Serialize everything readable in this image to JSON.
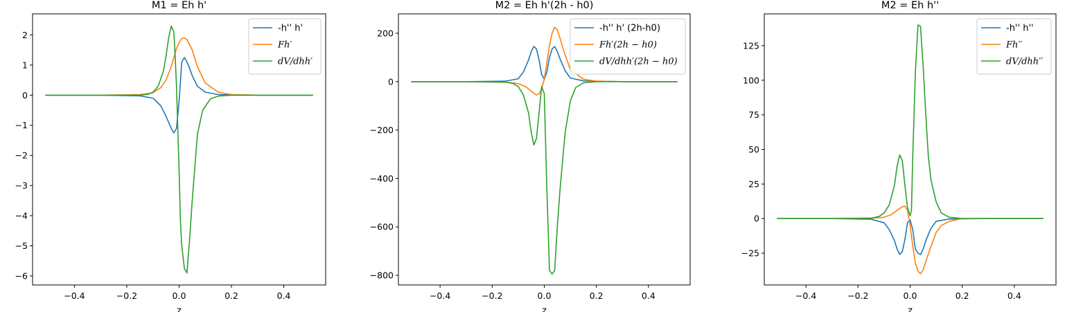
{
  "colors": {
    "c0": "#1f77b4",
    "c1": "#ff7f0e",
    "c2": "#2ca02c"
  },
  "chart_data": [
    {
      "type": "line",
      "title": "M1 = Eh h'",
      "xlabel": "z",
      "ylabel": "",
      "xlim": [
        -0.56,
        0.56
      ],
      "ylim": [
        -6.3,
        2.7
      ],
      "xticks": [
        -0.4,
        -0.2,
        0.0,
        0.2,
        0.4
      ],
      "xtick_labels": [
        "−0.4",
        "−0.2",
        "0.0",
        "0.2",
        "0.4"
      ],
      "yticks": [
        -6,
        -5,
        -4,
        -3,
        -2,
        -1,
        0,
        1,
        2
      ],
      "ytick_labels": [
        "−6",
        "−5",
        "−4",
        "−3",
        "−2",
        "−1",
        "0",
        "1",
        "2"
      ],
      "legend_position": "upper-right",
      "series": [
        {
          "name": "-h'' h'",
          "math": false,
          "color": "#1f77b4",
          "x": [
            -0.51,
            -0.3,
            -0.15,
            -0.1,
            -0.07,
            -0.05,
            -0.03,
            -0.02,
            -0.01,
            0.0,
            0.01,
            0.02,
            0.03,
            0.04,
            0.05,
            0.07,
            0.1,
            0.15,
            0.3,
            0.51
          ],
          "y": [
            0,
            0,
            -0.02,
            -0.1,
            -0.35,
            -0.7,
            -1.1,
            -1.25,
            -1.1,
            -0.2,
            1.1,
            1.25,
            1.1,
            0.9,
            0.65,
            0.3,
            0.1,
            0.02,
            0,
            0
          ]
        },
        {
          "name": "Fh′",
          "math": true,
          "color": "#ff7f0e",
          "x": [
            -0.51,
            -0.3,
            -0.15,
            -0.1,
            -0.07,
            -0.05,
            -0.03,
            -0.01,
            0.0,
            0.01,
            0.02,
            0.03,
            0.05,
            0.07,
            0.1,
            0.15,
            0.2,
            0.3,
            0.51
          ],
          "y": [
            0,
            0,
            0.02,
            0.08,
            0.25,
            0.5,
            0.95,
            1.55,
            1.75,
            1.88,
            1.9,
            1.85,
            1.5,
            0.95,
            0.4,
            0.1,
            0.02,
            0,
            0
          ]
        },
        {
          "name": "dV/dhh′",
          "math": true,
          "color": "#2ca02c",
          "x": [
            -0.51,
            -0.3,
            -0.15,
            -0.12,
            -0.1,
            -0.08,
            -0.06,
            -0.05,
            -0.04,
            -0.03,
            -0.02,
            -0.015,
            -0.01,
            0.0,
            0.005,
            0.01,
            0.02,
            0.03,
            0.04,
            0.05,
            0.07,
            0.09,
            0.12,
            0.15,
            0.2,
            0.3,
            0.51
          ],
          "y": [
            0,
            0,
            0,
            0.03,
            0.1,
            0.3,
            0.8,
            1.3,
            1.9,
            2.3,
            2.1,
            1.3,
            0.3,
            -2.5,
            -4.2,
            -5.0,
            -5.75,
            -5.9,
            -4.8,
            -3.5,
            -1.3,
            -0.5,
            -0.12,
            -0.03,
            0,
            0,
            0
          ]
        }
      ]
    },
    {
      "type": "line",
      "title": "M2 = Eh h'(2h - h0)",
      "xlabel": "z",
      "ylabel": "",
      "xlim": [
        -0.56,
        0.56
      ],
      "ylim": [
        -840,
        280
      ],
      "xticks": [
        -0.4,
        -0.2,
        0.0,
        0.2,
        0.4
      ],
      "xtick_labels": [
        "−0.4",
        "−0.2",
        "0.0",
        "0.2",
        "0.4"
      ],
      "yticks": [
        -800,
        -600,
        -400,
        -200,
        0,
        200
      ],
      "ytick_labels": [
        "−800",
        "−600",
        "−400",
        "−200",
        "0",
        "200"
      ],
      "legend_position": "upper-right",
      "series": [
        {
          "name": "-h'' h' (2h-h0)",
          "math": false,
          "color": "#1f77b4",
          "x": [
            -0.51,
            -0.3,
            -0.15,
            -0.1,
            -0.08,
            -0.06,
            -0.05,
            -0.04,
            -0.03,
            -0.02,
            -0.01,
            0.0,
            0.01,
            0.02,
            0.03,
            0.04,
            0.05,
            0.06,
            0.08,
            0.1,
            0.15,
            0.3,
            0.51
          ],
          "y": [
            0,
            0,
            2,
            12,
            40,
            90,
            125,
            145,
            135,
            90,
            30,
            10,
            40,
            100,
            135,
            145,
            125,
            95,
            45,
            15,
            3,
            0,
            0
          ]
        },
        {
          "name": "Fh′(2h − h0)",
          "math": true,
          "color": "#ff7f0e",
          "x": [
            -0.51,
            -0.3,
            -0.15,
            -0.1,
            -0.07,
            -0.05,
            -0.03,
            -0.02,
            -0.01,
            0.0,
            0.01,
            0.02,
            0.03,
            0.04,
            0.05,
            0.06,
            0.08,
            0.1,
            0.15,
            0.2,
            0.3,
            0.51
          ],
          "y": [
            0,
            0,
            -2,
            -8,
            -22,
            -40,
            -55,
            -50,
            -30,
            10,
            80,
            150,
            200,
            225,
            215,
            180,
            110,
            50,
            10,
            2,
            0,
            0
          ]
        },
        {
          "name": "dV/dhh′(2h − h0)",
          "math": true,
          "color": "#2ca02c",
          "x": [
            -0.51,
            -0.3,
            -0.15,
            -0.12,
            -0.1,
            -0.08,
            -0.06,
            -0.05,
            -0.04,
            -0.03,
            -0.02,
            -0.01,
            0.0,
            0.005,
            0.01,
            0.02,
            0.03,
            0.04,
            0.05,
            0.06,
            0.08,
            0.1,
            0.12,
            0.15,
            0.2,
            0.3,
            0.51
          ],
          "y": [
            0,
            0,
            -2,
            -8,
            -20,
            -55,
            -130,
            -210,
            -262,
            -235,
            -130,
            -20,
            -50,
            -250,
            -450,
            -780,
            -795,
            -780,
            -600,
            -450,
            -210,
            -80,
            -25,
            -5,
            0,
            0,
            0
          ]
        }
      ]
    },
    {
      "type": "line",
      "title": "M2 = Eh h''",
      "xlabel": "z",
      "ylabel": "",
      "xlim": [
        -0.56,
        0.56
      ],
      "ylim": [
        -48,
        148
      ],
      "xticks": [
        -0.4,
        -0.2,
        0.0,
        0.2,
        0.4
      ],
      "xtick_labels": [
        "−0.4",
        "−0.2",
        "0.0",
        "0.2",
        "0.4"
      ],
      "yticks": [
        -25,
        0,
        25,
        50,
        75,
        100,
        125
      ],
      "ytick_labels": [
        "−25",
        "0",
        "25",
        "50",
        "75",
        "100",
        "125"
      ],
      "legend_position": "upper-right",
      "series": [
        {
          "name": "-h'' h''",
          "math": false,
          "color": "#1f77b4",
          "x": [
            -0.51,
            -0.3,
            -0.15,
            -0.1,
            -0.08,
            -0.06,
            -0.05,
            -0.04,
            -0.03,
            -0.02,
            -0.01,
            0.0,
            0.01,
            0.02,
            0.03,
            0.04,
            0.05,
            0.06,
            0.08,
            0.1,
            0.15,
            0.3,
            0.51
          ],
          "y": [
            0,
            0,
            -0.5,
            -3,
            -8,
            -16,
            -22,
            -26,
            -24,
            -15,
            -3,
            -1,
            -8,
            -22,
            -25,
            -26,
            -22,
            -16,
            -7,
            -2,
            -0.3,
            0,
            0
          ]
        },
        {
          "name": "Fh′′",
          "math": true,
          "color": "#ff7f0e",
          "x": [
            -0.51,
            -0.3,
            -0.15,
            -0.1,
            -0.07,
            -0.05,
            -0.03,
            -0.02,
            -0.01,
            0.0,
            0.01,
            0.02,
            0.03,
            0.04,
            0.05,
            0.06,
            0.08,
            0.1,
            0.12,
            0.15,
            0.2,
            0.3,
            0.51
          ],
          "y": [
            0,
            0,
            0.2,
            1,
            3,
            6,
            8.5,
            9,
            6,
            -5,
            -20,
            -32,
            -38,
            -40,
            -37,
            -31,
            -20,
            -10,
            -5,
            -2,
            0,
            0,
            0
          ]
        },
        {
          "name": "dV/dhh′′",
          "math": true,
          "color": "#2ca02c",
          "x": [
            -0.51,
            -0.3,
            -0.15,
            -0.12,
            -0.1,
            -0.08,
            -0.06,
            -0.05,
            -0.04,
            -0.03,
            -0.02,
            -0.01,
            0.0,
            0.005,
            0.01,
            0.02,
            0.03,
            0.04,
            0.05,
            0.06,
            0.07,
            0.08,
            0.1,
            0.12,
            0.15,
            0.2,
            0.3,
            0.51
          ],
          "y": [
            0,
            0,
            0.3,
            1.5,
            4,
            10,
            24,
            38,
            46,
            42,
            24,
            8,
            2,
            6,
            45,
            105,
            140,
            139,
            110,
            75,
            45,
            28,
            12,
            4,
            1,
            0,
            0,
            0
          ]
        }
      ]
    }
  ]
}
